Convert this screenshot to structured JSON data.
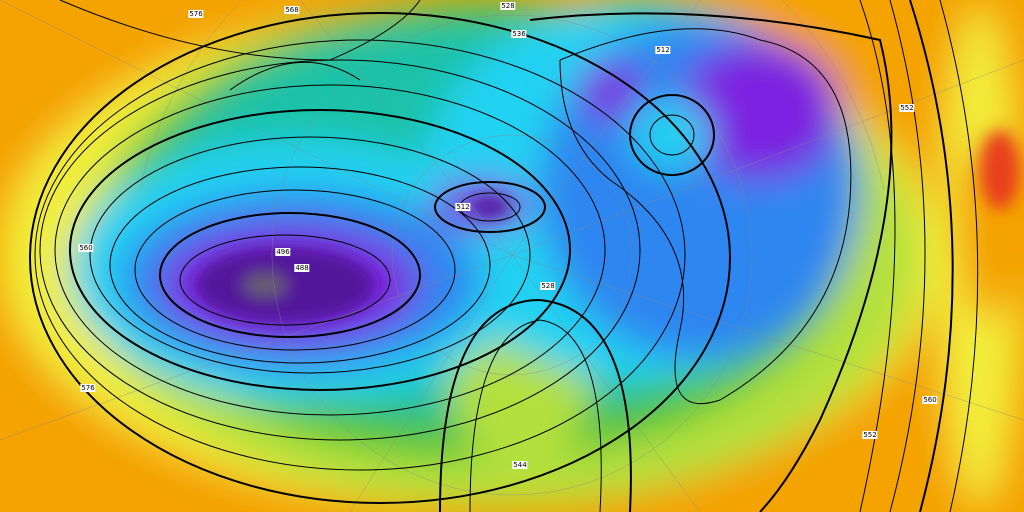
{
  "map": {
    "projection": "polar-stereographic",
    "field": "500 hPa geopotential height contours over temperature shading",
    "colors": {
      "warm_orange": "#f4a300",
      "red": "#e8401a",
      "yellow": "#f2ee3a",
      "lime": "#b4e03c",
      "green": "#4ec23e",
      "teal": "#1fc2a8",
      "cyan": "#22d2f2",
      "blue": "#2f86f0",
      "purple": "#7b22e0",
      "dark_purple": "#52169a",
      "grey": "#6b5e6e",
      "contour": "#000000"
    },
    "contour_labels": [
      "576",
      "568",
      "528",
      "536",
      "512",
      "496",
      "488",
      "512",
      "528",
      "560",
      "576",
      "552",
      "560",
      "552",
      "544"
    ]
  }
}
